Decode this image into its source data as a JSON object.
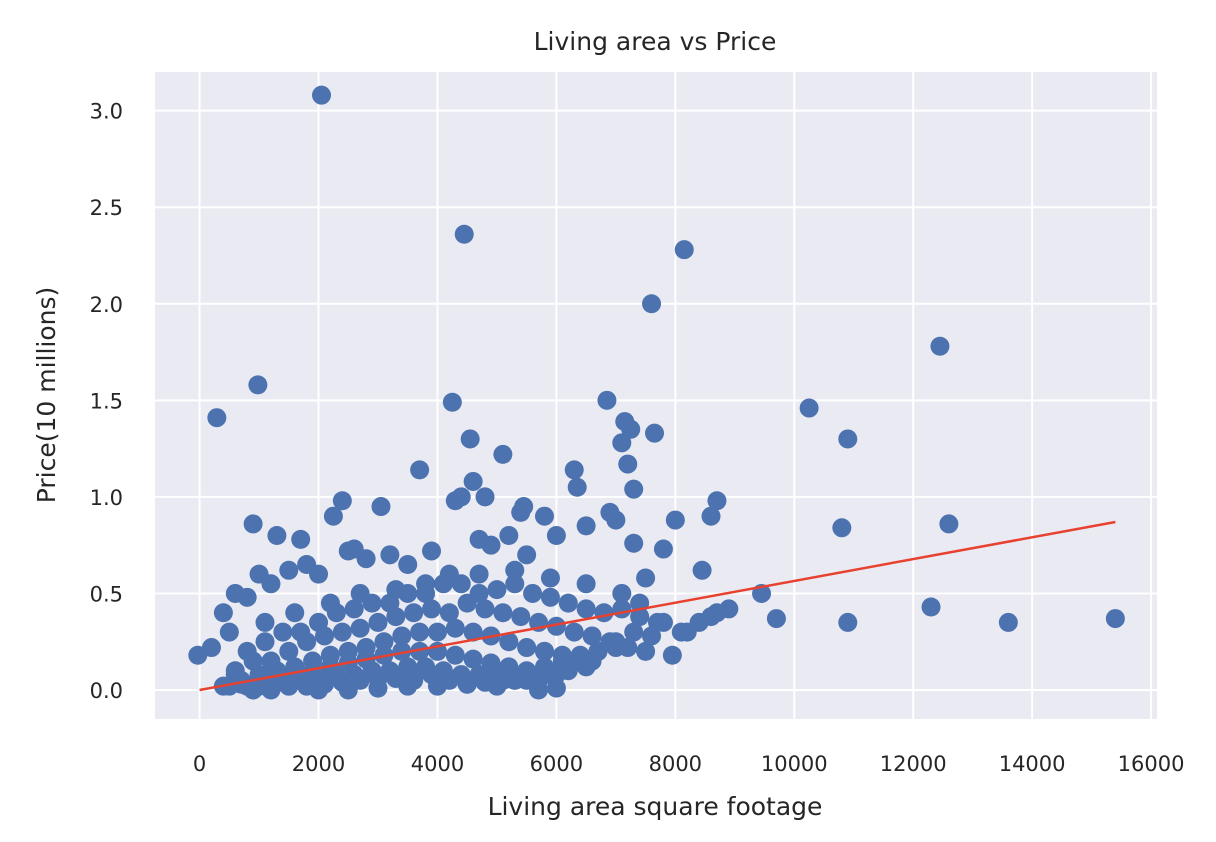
{
  "chart_data": {
    "type": "scatter",
    "title": "Living area vs Price",
    "xlabel": "Living area square footage",
    "ylabel": "Price(10 millions)",
    "xlim": [
      -750,
      16100
    ],
    "ylim": [
      -0.15,
      3.2
    ],
    "xticks": [
      0,
      2000,
      4000,
      6000,
      8000,
      10000,
      12000,
      14000,
      16000
    ],
    "yticks": [
      0.0,
      0.5,
      1.0,
      1.5,
      2.0,
      2.5,
      3.0
    ],
    "xtick_labels": [
      "0",
      "2000",
      "4000",
      "6000",
      "8000",
      "10000",
      "12000",
      "14000",
      "16000"
    ],
    "ytick_labels": [
      "0.0",
      "0.5",
      "1.0",
      "1.5",
      "2.0",
      "2.5",
      "3.0"
    ],
    "grid": true,
    "background_color": "#EAEAF2",
    "point_color": "#4C72B0",
    "line_color": "#E8412F",
    "series": [
      {
        "kind": "points",
        "x": [
          2050,
          4450,
          8150,
          7600,
          12450,
          980,
          290,
          4250,
          6850,
          10250,
          10900,
          4550,
          5100,
          7150,
          7250,
          7200,
          7100,
          7650,
          6300,
          3700,
          7300,
          6350,
          4600,
          4400,
          4800,
          4300,
          3050,
          2400,
          2250,
          8000,
          8700,
          8600,
          6900,
          10800,
          12600,
          900,
          1000,
          1300,
          1700,
          2500,
          9450,
          9700,
          12300,
          10900,
          13600,
          15400,
          8450,
          8700,
          8900,
          7950,
          5800,
          5400,
          5450,
          7800,
          7500,
          7300,
          7000,
          6000,
          6500,
          5500,
          5200,
          4900,
          4700,
          3900,
          3500,
          3200,
          2800,
          2600,
          2000,
          1800,
          1500,
          1200,
          800,
          600,
          400,
          200,
          -30,
          500,
          1100,
          1600,
          2200,
          2700,
          3300,
          3800,
          4200,
          4700,
          5300,
          5900,
          6500,
          7100,
          7400,
          800,
          1100,
          1400,
          1700,
          2000,
          2300,
          2600,
          2900,
          3200,
          3500,
          3800,
          4100,
          4400,
          4700,
          5000,
          5300,
          5600,
          5900,
          6200,
          6500,
          6800,
          7100,
          7400,
          7700,
          8200,
          600,
          900,
          1200,
          1500,
          1800,
          2100,
          2400,
          2700,
          3000,
          3300,
          3600,
          3900,
          4200,
          4500,
          4800,
          5100,
          5400,
          5700,
          6000,
          6300,
          6600,
          6900,
          7200,
          7500,
          7800,
          8100,
          8400,
          8600,
          700,
          1000,
          1300,
          1600,
          1900,
          2200,
          2500,
          2800,
          3100,
          3400,
          3700,
          4000,
          4300,
          4600,
          4900,
          5200,
          5500,
          5800,
          6100,
          6400,
          6700,
          7000,
          7300,
          7600,
          400,
          700,
          1000,
          1300,
          1600,
          1900,
          2200,
          2500,
          2800,
          3100,
          3400,
          3700,
          4000,
          4300,
          4600,
          4900,
          5200,
          5500,
          5800,
          6100,
          6400,
          6700,
          7000,
          500,
          800,
          1100,
          1400,
          1700,
          2000,
          2300,
          2600,
          2900,
          3200,
          3500,
          3800,
          4100,
          4400,
          4700,
          5000,
          5300,
          5600,
          5900,
          6200,
          6500,
          600,
          900,
          1200,
          1500,
          1800,
          2100,
          2400,
          2700,
          3000,
          3300,
          3600,
          3900,
          4200,
          4500,
          4800,
          5100,
          5400,
          5700,
          6000,
          1000,
          1500,
          2000,
          2500,
          3000,
          3500,
          4000,
          4500,
          5000,
          5500,
          6000,
          6600,
          5700,
          5800,
          4900,
          3600
        ],
        "y": [
          3.08,
          2.36,
          2.28,
          2.0,
          1.78,
          1.58,
          1.41,
          1.49,
          1.5,
          1.46,
          1.3,
          1.3,
          1.22,
          1.39,
          1.35,
          1.17,
          1.28,
          1.33,
          1.14,
          1.14,
          1.04,
          1.05,
          1.08,
          1.0,
          1.0,
          0.98,
          0.95,
          0.98,
          0.9,
          0.88,
          0.98,
          0.9,
          0.92,
          0.84,
          0.86,
          0.86,
          0.6,
          0.8,
          0.78,
          0.72,
          0.5,
          0.37,
          0.43,
          0.35,
          0.35,
          0.37,
          0.62,
          0.4,
          0.42,
          0.18,
          0.9,
          0.92,
          0.95,
          0.73,
          0.58,
          0.76,
          0.88,
          0.8,
          0.85,
          0.7,
          0.8,
          0.75,
          0.78,
          0.72,
          0.65,
          0.7,
          0.68,
          0.73,
          0.6,
          0.65,
          0.62,
          0.55,
          0.48,
          0.5,
          0.4,
          0.22,
          0.18,
          0.3,
          0.35,
          0.4,
          0.45,
          0.5,
          0.52,
          0.55,
          0.6,
          0.6,
          0.62,
          0.58,
          0.55,
          0.5,
          0.45,
          0.2,
          0.25,
          0.3,
          0.3,
          0.35,
          0.4,
          0.42,
          0.45,
          0.45,
          0.5,
          0.5,
          0.55,
          0.55,
          0.5,
          0.52,
          0.55,
          0.5,
          0.48,
          0.45,
          0.42,
          0.4,
          0.42,
          0.38,
          0.35,
          0.3,
          0.1,
          0.15,
          0.15,
          0.2,
          0.25,
          0.28,
          0.3,
          0.32,
          0.35,
          0.38,
          0.4,
          0.42,
          0.4,
          0.45,
          0.42,
          0.4,
          0.38,
          0.35,
          0.33,
          0.3,
          0.28,
          0.25,
          0.22,
          0.2,
          0.35,
          0.3,
          0.35,
          0.38,
          0.05,
          0.08,
          0.1,
          0.12,
          0.15,
          0.18,
          0.2,
          0.22,
          0.25,
          0.28,
          0.3,
          0.3,
          0.32,
          0.3,
          0.28,
          0.25,
          0.22,
          0.2,
          0.18,
          0.15,
          0.2,
          0.25,
          0.3,
          0.28,
          0.02,
          0.03,
          0.05,
          0.06,
          0.08,
          0.1,
          0.12,
          0.14,
          0.16,
          0.18,
          0.2,
          0.2,
          0.2,
          0.18,
          0.16,
          0.14,
          0.12,
          0.1,
          0.12,
          0.15,
          0.18,
          0.2,
          0.22,
          0.02,
          0.02,
          0.03,
          0.04,
          0.05,
          0.06,
          0.07,
          0.08,
          0.1,
          0.1,
          0.12,
          0.12,
          0.1,
          0.08,
          0.08,
          0.06,
          0.05,
          0.06,
          0.08,
          0.1,
          0.12,
          0.08,
          0.0,
          0.0,
          0.02,
          0.02,
          0.03,
          0.04,
          0.05,
          0.06,
          0.06,
          0.07,
          0.08,
          0.05,
          0.03,
          0.04,
          0.05,
          0.06,
          0.05,
          0.08,
          0.02,
          0.02,
          0.0,
          0.0,
          0.01,
          0.02,
          0.02,
          0.03,
          0.02,
          0.05,
          0.01,
          0.15,
          0.0,
          0.2,
          0.12,
          0.05
        ]
      },
      {
        "kind": "regression-line",
        "x": [
          0,
          15400
        ],
        "y": [
          0.0,
          0.87
        ]
      }
    ]
  }
}
